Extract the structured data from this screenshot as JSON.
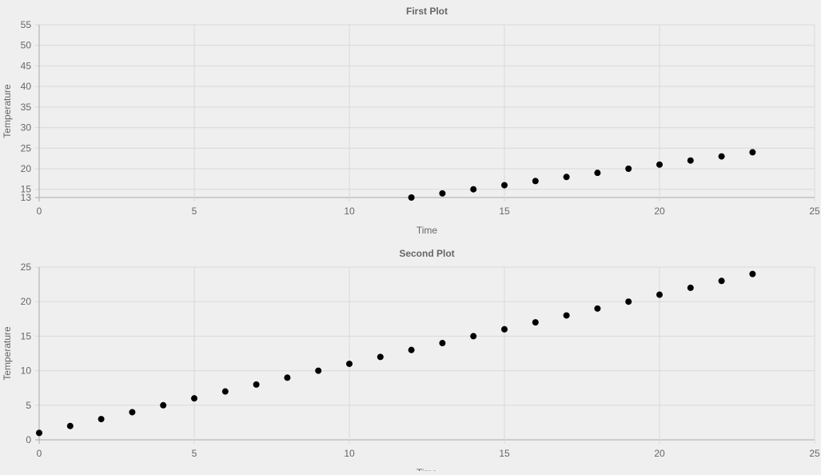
{
  "chart_data": [
    {
      "type": "scatter",
      "title": "First Plot",
      "xlabel": "Time",
      "ylabel": "Temperature",
      "xlim": [
        0,
        25
      ],
      "ylim": [
        13,
        55
      ],
      "xticks": [
        0,
        5,
        10,
        15,
        20,
        25
      ],
      "yticks": [
        13,
        15,
        20,
        25,
        30,
        35,
        40,
        45,
        50,
        55
      ],
      "grid": true,
      "legend": "none",
      "point_color": "#000000",
      "series": [
        {
          "x": [
            12,
            13,
            14,
            15,
            16,
            17,
            18,
            19,
            20,
            21,
            22,
            23
          ],
          "y": [
            13,
            14,
            15,
            16,
            17,
            18,
            19,
            20,
            21,
            22,
            23,
            24
          ]
        }
      ]
    },
    {
      "type": "scatter",
      "title": "Second Plot",
      "xlabel": "Time",
      "ylabel": "Temperature",
      "xlim": [
        0,
        25
      ],
      "ylim": [
        0,
        25
      ],
      "xticks": [
        0,
        5,
        10,
        15,
        20,
        25
      ],
      "yticks": [
        0,
        5,
        10,
        15,
        20,
        25
      ],
      "grid": true,
      "legend": "none",
      "point_color": "#000000",
      "series": [
        {
          "x": [
            0,
            1,
            2,
            3,
            4,
            5,
            6,
            7,
            8,
            9,
            10,
            11,
            12,
            13,
            14,
            15,
            16,
            17,
            18,
            19,
            20,
            21,
            22,
            23
          ],
          "y": [
            1,
            2,
            3,
            4,
            5,
            6,
            7,
            8,
            9,
            10,
            11,
            12,
            13,
            14,
            15,
            16,
            17,
            18,
            19,
            20,
            21,
            22,
            23,
            24
          ]
        }
      ]
    }
  ]
}
